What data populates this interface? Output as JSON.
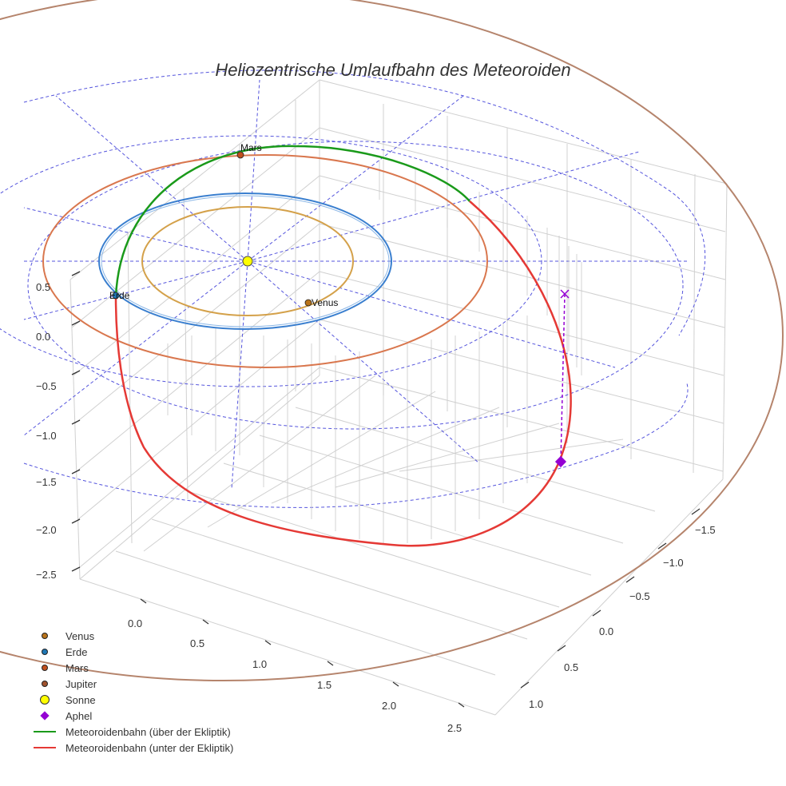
{
  "chart_data": {
    "type": "scatter3d",
    "title": "Heliozentrische Umlaufbahn des Meteoroiden",
    "axes": {
      "x": {
        "ticks": [
          -1.5,
          -1.0,
          -0.5,
          0.0,
          0.5,
          1.0
        ],
        "tick_labels": [
          "−1.5",
          "−1.0",
          "−0.5",
          "0.0",
          "0.5",
          "1.0"
        ]
      },
      "y": {
        "ticks": [
          0.0,
          0.5,
          1.0,
          1.5,
          2.0,
          2.5
        ],
        "tick_labels": [
          "0.0",
          "0.5",
          "1.0",
          "1.5",
          "2.0",
          "2.5"
        ]
      },
      "z": {
        "ticks": [
          0.5,
          0.0,
          -0.5,
          -1.0,
          -1.5,
          -2.0,
          -2.5
        ],
        "tick_labels": [
          "0.5",
          "0.0",
          "−0.5",
          "−1.0",
          "−1.5",
          "−2.0",
          "−2.5"
        ]
      }
    },
    "planets": [
      {
        "name": "Venus",
        "orbit_radius_au": 0.72,
        "color": "#d4a14a",
        "marker": "#b8731a",
        "label": "Venus"
      },
      {
        "name": "Erde",
        "orbit_radius_au": 1.0,
        "color": "#3a7fcf",
        "marker": "#1f77b4",
        "label": "Erde"
      },
      {
        "name": "Mars",
        "orbit_radius_au": 1.52,
        "color": "#d9774e",
        "marker": "#c0501f",
        "label": "Mars"
      },
      {
        "name": "Jupiter",
        "orbit_radius_au": 5.2,
        "color": "#b5846c",
        "marker": "#a0522d"
      }
    ],
    "sun": {
      "name": "Sonne",
      "position": [
        0,
        0,
        0
      ],
      "color": "#ffff00"
    },
    "aphel": {
      "name": "Aphel",
      "color": "#9400d3"
    },
    "meteoroid_orbit": {
      "above": {
        "name": "Meteoroidenbahn (über der Ekliptik)",
        "color": "#1a9a1a"
      },
      "below": {
        "name": "Meteoroidenbahn (unter der Ekliptik)",
        "color": "#e53935"
      }
    },
    "reference_grid": {
      "color": "#5555dd",
      "style": "dashed",
      "ring_radii_au": [
        1,
        2,
        3
      ]
    }
  },
  "legend": [
    {
      "label": "Venus",
      "symbol": "dot",
      "color": "#b8731a"
    },
    {
      "label": "Erde",
      "symbol": "dot",
      "color": "#1f77b4"
    },
    {
      "label": "Mars",
      "symbol": "dot",
      "color": "#c0501f"
    },
    {
      "label": "Jupiter",
      "symbol": "dot",
      "color": "#a0522d"
    },
    {
      "label": "Sonne",
      "symbol": "bigdot",
      "color": "#ffff00"
    },
    {
      "label": "Aphel",
      "symbol": "diamond",
      "color": "#9400d3"
    },
    {
      "label": "Meteoroidenbahn (über der Ekliptik)",
      "symbol": "line",
      "color": "#1a9a1a"
    },
    {
      "label": "Meteoroidenbahn (unter der Ekliptik)",
      "symbol": "line",
      "color": "#e53935"
    }
  ]
}
